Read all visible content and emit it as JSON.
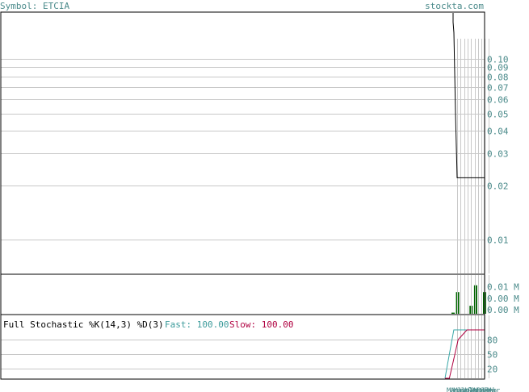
{
  "header": {
    "symbol": "Symbol: ETCIA",
    "brand": "stockta.com"
  },
  "chart_data": [
    {
      "type": "line",
      "panel": "price",
      "scale": "log",
      "ylim": [
        0.0065,
        0.18
      ],
      "y_ticks": [
        0.1,
        0.09,
        0.08,
        0.07,
        0.06,
        0.05,
        0.04,
        0.03,
        0.02,
        0.01
      ],
      "y_tick_labels": [
        "0.10",
        "0.09",
        "0.08",
        "0.07",
        "0.06",
        "0.05",
        "0.04",
        "0.03",
        "0.02",
        "0.01"
      ],
      "series": [
        {
          "values": [
            0.16,
            0.14,
            0.05,
            0.022,
            0.022,
            0.022,
            0.022,
            0.022,
            0.022,
            0.022
          ]
        }
      ],
      "colors": {
        "line": "#000000",
        "grid": "#c8c8c8"
      }
    },
    {
      "type": "bar",
      "panel": "volume",
      "ylim": [
        0,
        0.017
      ],
      "y_tick_labels": [
        "0.01 M",
        "0.00 M",
        "0.00 M"
      ],
      "y_tick_values": [
        0.0118,
        0.0068,
        0.0018
      ],
      "values": [
        0.0005,
        0.0095,
        0.0,
        0.0,
        0.0035,
        0.0125,
        0.0,
        0.0095
      ],
      "colors": {
        "bar": "#006600"
      }
    },
    {
      "type": "line",
      "panel": "stochastic",
      "title": "Full Stochastic %K(14,3) %D(3)",
      "fast_label": "Fast:",
      "fast_value": "100.00",
      "slow_label": "Slow:",
      "slow_value": "100.00",
      "ylim": [
        0,
        130
      ],
      "y_ticks": [
        80,
        50,
        20
      ],
      "series": [
        {
          "name": "Fast",
          "values": [
            0,
            50,
            100,
            100,
            100,
            100,
            100,
            100,
            100,
            100
          ]
        },
        {
          "name": "Slow",
          "values": [
            0,
            0,
            40,
            80,
            90,
            100,
            100,
            100,
            100,
            100
          ]
        }
      ],
      "colors": {
        "fast": "#3aa8a8",
        "slow": "#b00040"
      },
      "x_labels": [
        "Mar",
        "Apr",
        "May",
        "Jun",
        "Jul",
        "Aug",
        "Sep",
        "Oct",
        "Nov",
        "Dec",
        "Jan",
        "Feb",
        "Mar"
      ]
    }
  ]
}
